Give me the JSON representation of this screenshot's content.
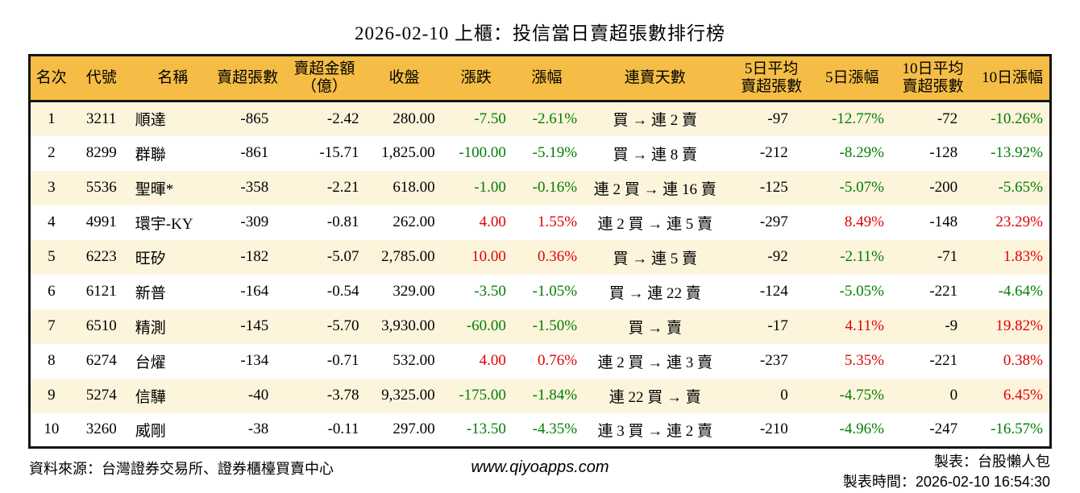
{
  "title": "2026-02-10 上櫃：投信當日賣超張數排行榜",
  "colors": {
    "up_red": "#e00000",
    "down_green": "#007e00",
    "header_bg": "#f5bd45",
    "row_odd_bg": "#fdf4dc",
    "row_even_bg": "#ffffff",
    "border": "#141414"
  },
  "chart_data": {
    "type": "table",
    "title": "2026-02-10 上櫃：投信當日賣超張數排行榜",
    "columns": [
      {
        "key": "rank",
        "label": "名次",
        "align": "center"
      },
      {
        "key": "code",
        "label": "代號",
        "align": "center"
      },
      {
        "key": "name",
        "label": "名稱",
        "align": "left"
      },
      {
        "key": "net_sell",
        "label": "賣超張數",
        "align": "right"
      },
      {
        "key": "amount",
        "label": "賣超金額\n（億）",
        "align": "right"
      },
      {
        "key": "close",
        "label": "收盤",
        "align": "right"
      },
      {
        "key": "change",
        "label": "漲跌",
        "align": "right",
        "color": "change_dir"
      },
      {
        "key": "change_pct",
        "label": "漲幅",
        "align": "right",
        "color": "change_dir"
      },
      {
        "key": "streak",
        "label": "連賣天數",
        "align": "center"
      },
      {
        "key": "avg5",
        "label": "5日平均\n賣超張數",
        "align": "right"
      },
      {
        "key": "pct5",
        "label": "5日漲幅",
        "align": "right",
        "color": "pct5_dir"
      },
      {
        "key": "avg10",
        "label": "10日平均\n賣超張數",
        "align": "right"
      },
      {
        "key": "pct10",
        "label": "10日漲幅",
        "align": "right",
        "color": "pct10_dir"
      }
    ],
    "rows": [
      {
        "rank": "1",
        "code": "3211",
        "name": "順達",
        "net_sell": "-865",
        "amount": "-2.42",
        "close": "280.00",
        "change": "-7.50",
        "change_pct": "-2.61%",
        "streak": "買 → 連 2 賣",
        "avg5": "-97",
        "pct5": "-12.77%",
        "avg10": "-72",
        "pct10": "-10.26%",
        "change_dir": "down",
        "pct5_dir": "down",
        "pct10_dir": "down"
      },
      {
        "rank": "2",
        "code": "8299",
        "name": "群聯",
        "net_sell": "-861",
        "amount": "-15.71",
        "close": "1,825.00",
        "change": "-100.00",
        "change_pct": "-5.19%",
        "streak": "買 → 連 8 賣",
        "avg5": "-212",
        "pct5": "-8.29%",
        "avg10": "-128",
        "pct10": "-13.92%",
        "change_dir": "down",
        "pct5_dir": "down",
        "pct10_dir": "down"
      },
      {
        "rank": "3",
        "code": "5536",
        "name": "聖暉*",
        "net_sell": "-358",
        "amount": "-2.21",
        "close": "618.00",
        "change": "-1.00",
        "change_pct": "-0.16%",
        "streak": "連 2 買 → 連 16 賣",
        "avg5": "-125",
        "pct5": "-5.07%",
        "avg10": "-200",
        "pct10": "-5.65%",
        "change_dir": "down",
        "pct5_dir": "down",
        "pct10_dir": "down"
      },
      {
        "rank": "4",
        "code": "4991",
        "name": "環宇-KY",
        "net_sell": "-309",
        "amount": "-0.81",
        "close": "262.00",
        "change": "4.00",
        "change_pct": "1.55%",
        "streak": "連 2 買 → 連 5 賣",
        "avg5": "-297",
        "pct5": "8.49%",
        "avg10": "-148",
        "pct10": "23.29%",
        "change_dir": "up",
        "pct5_dir": "up",
        "pct10_dir": "up"
      },
      {
        "rank": "5",
        "code": "6223",
        "name": "旺矽",
        "net_sell": "-182",
        "amount": "-5.07",
        "close": "2,785.00",
        "change": "10.00",
        "change_pct": "0.36%",
        "streak": "買 → 連 5 賣",
        "avg5": "-92",
        "pct5": "-2.11%",
        "avg10": "-71",
        "pct10": "1.83%",
        "change_dir": "up",
        "pct5_dir": "down",
        "pct10_dir": "up"
      },
      {
        "rank": "6",
        "code": "6121",
        "name": "新普",
        "net_sell": "-164",
        "amount": "-0.54",
        "close": "329.00",
        "change": "-3.50",
        "change_pct": "-1.05%",
        "streak": "買 → 連 22 賣",
        "avg5": "-124",
        "pct5": "-5.05%",
        "avg10": "-221",
        "pct10": "-4.64%",
        "change_dir": "down",
        "pct5_dir": "down",
        "pct10_dir": "down"
      },
      {
        "rank": "7",
        "code": "6510",
        "name": "精測",
        "net_sell": "-145",
        "amount": "-5.70",
        "close": "3,930.00",
        "change": "-60.00",
        "change_pct": "-1.50%",
        "streak": "買 → 賣",
        "avg5": "-17",
        "pct5": "4.11%",
        "avg10": "-9",
        "pct10": "19.82%",
        "change_dir": "down",
        "pct5_dir": "up",
        "pct10_dir": "up"
      },
      {
        "rank": "8",
        "code": "6274",
        "name": "台燿",
        "net_sell": "-134",
        "amount": "-0.71",
        "close": "532.00",
        "change": "4.00",
        "change_pct": "0.76%",
        "streak": "連 2 買 → 連 3 賣",
        "avg5": "-237",
        "pct5": "5.35%",
        "avg10": "-221",
        "pct10": "0.38%",
        "change_dir": "up",
        "pct5_dir": "up",
        "pct10_dir": "up"
      },
      {
        "rank": "9",
        "code": "5274",
        "name": "信驊",
        "net_sell": "-40",
        "amount": "-3.78",
        "close": "9,325.00",
        "change": "-175.00",
        "change_pct": "-1.84%",
        "streak": "連 22 買 → 賣",
        "avg5": "0",
        "pct5": "-4.75%",
        "avg10": "0",
        "pct10": "6.45%",
        "change_dir": "down",
        "pct5_dir": "down",
        "pct10_dir": "up"
      },
      {
        "rank": "10",
        "code": "3260",
        "name": "威剛",
        "net_sell": "-38",
        "amount": "-0.11",
        "close": "297.00",
        "change": "-13.50",
        "change_pct": "-4.35%",
        "streak": "連 3 買 → 連 2 賣",
        "avg5": "-210",
        "pct5": "-4.96%",
        "avg10": "-247",
        "pct10": "-16.57%",
        "change_dir": "down",
        "pct5_dir": "down",
        "pct10_dir": "down"
      }
    ]
  },
  "footer": {
    "source": "資料來源：台灣證券交易所、證券櫃檯買賣中心",
    "website": "www.qiyoapps.com",
    "maker": "製表：台股懶人包",
    "made_time_label": "製表時間：",
    "made_time": "2026-02-10 16:54:30"
  }
}
